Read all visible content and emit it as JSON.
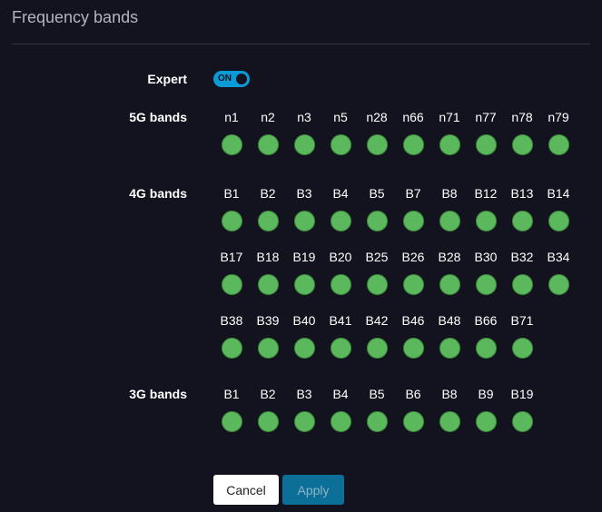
{
  "title": "Frequency bands",
  "expert": {
    "label": "Expert",
    "toggle_text": "ON",
    "on": true,
    "color": "#0a9ad6"
  },
  "band_color": "#5cb85c",
  "groups": [
    {
      "label": "5G bands",
      "rows": [
        [
          "n1",
          "n2",
          "n3",
          "n5",
          "n28",
          "n66",
          "n71",
          "n77",
          "n78",
          "n79"
        ]
      ]
    },
    {
      "label": "4G bands",
      "rows": [
        [
          "B1",
          "B2",
          "B3",
          "B4",
          "B5",
          "B7",
          "B8",
          "B12",
          "B13",
          "B14"
        ],
        [
          "B17",
          "B18",
          "B19",
          "B20",
          "B25",
          "B26",
          "B28",
          "B30",
          "B32",
          "B34"
        ],
        [
          "B38",
          "B39",
          "B40",
          "B41",
          "B42",
          "B46",
          "B48",
          "B66",
          "B71"
        ]
      ]
    },
    {
      "label": "3G bands",
      "rows": [
        [
          "B1",
          "B2",
          "B3",
          "B4",
          "B5",
          "B6",
          "B8",
          "B9",
          "B19"
        ]
      ]
    }
  ],
  "buttons": {
    "cancel": "Cancel",
    "apply": "Apply"
  }
}
